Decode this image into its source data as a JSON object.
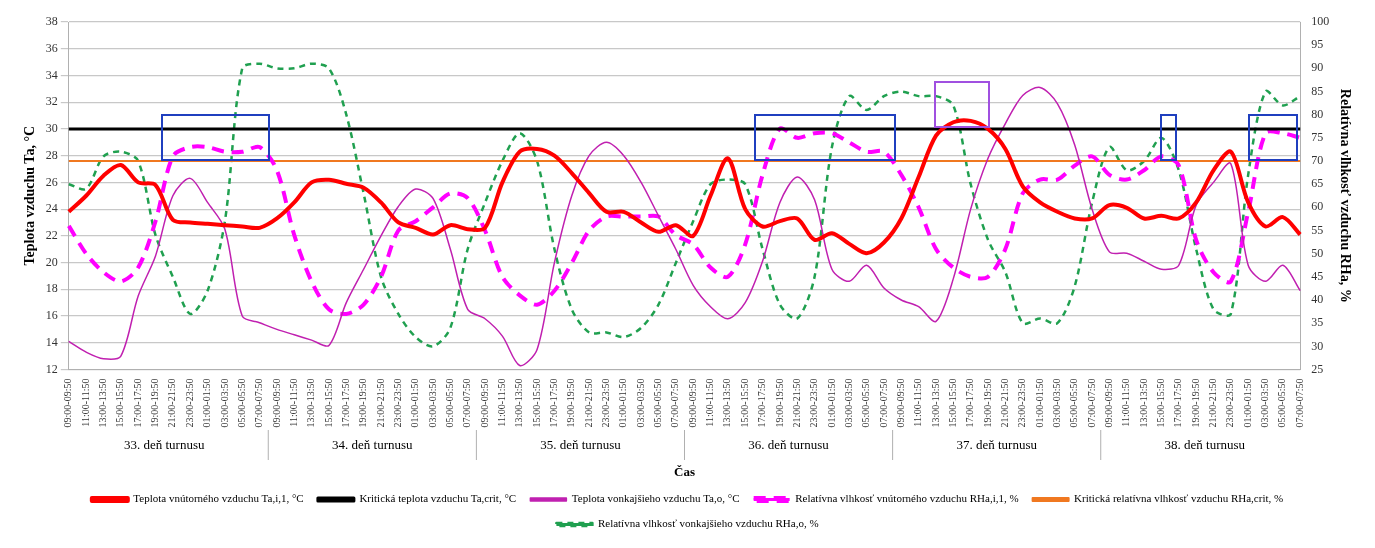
{
  "chart_data": {
    "type": "line",
    "xlabel": "Čas",
    "ylabel": "Teplota vzduchu Ta, °C",
    "y2label": "Relatívna vlhkosť vzduchu RHa, %",
    "categories": [
      "09:00-09:50",
      "11:00-11:50",
      "13:00-13:50",
      "15:00-15:50",
      "17:00-17:50",
      "19:00-19:50",
      "21:00-21:50",
      "23:00-23:50",
      "01:00-01:50",
      "03:00-03:50",
      "05:00-05:50",
      "07:00-07:50",
      "09:00-09:50",
      "11:00-11:50",
      "13:00-13:50",
      "15:00-15:50",
      "17:00-17:50",
      "19:00-19:50",
      "21:00-21:50",
      "23:00-23:50",
      "01:00-01:50",
      "03:00-03:50",
      "05:00-05:50",
      "07:00-07:50",
      "09:00-09:50",
      "11:00-11:50",
      "13:00-13:50",
      "15:00-15:50",
      "17:00-17:50",
      "19:00-19:50",
      "21:00-21:50",
      "23:00-23:50",
      "01:00-01:50",
      "03:00-03:50",
      "05:00-05:50",
      "07:00-07:50",
      "09:00-09:50",
      "11:00-11:50",
      "13:00-13:50",
      "15:00-15:50",
      "17:00-17:50",
      "19:00-19:50",
      "21:00-21:50",
      "23:00-23:50",
      "01:00-01:50",
      "03:00-03:50",
      "05:00-05:50",
      "07:00-07:50",
      "09:00-09:50",
      "11:00-11:50",
      "13:00-13:50",
      "15:00-15:50",
      "17:00-17:50",
      "19:00-19:50",
      "21:00-21:50",
      "23:00-23:50",
      "01:00-01:50",
      "03:00-03:50",
      "05:00-05:50",
      "07:00-07:50",
      "09:00-09:50",
      "11:00-11:50",
      "13:00-13:50",
      "15:00-15:50",
      "17:00-17:50",
      "19:00-19:50",
      "21:00-21:50",
      "23:00-23:50",
      "01:00-01:50",
      "03:00-03:50",
      "05:00-05:50",
      "07:00-07:50"
    ],
    "series": [
      {
        "name": "Teplota vnútorného vzduchu Ta,i,1, °C",
        "color": "#ff0000",
        "line_style": "solid",
        "values": [
          23.8,
          25.0,
          26.5,
          27.3,
          26.0,
          25.8,
          23.2,
          23.0,
          22.9,
          22.8,
          22.7,
          22.6,
          23.3,
          24.5,
          26.0,
          26.2,
          25.9,
          25.6,
          24.5,
          23.0,
          22.6,
          22.1,
          22.8,
          22.5,
          22.6,
          26.0,
          28.3,
          28.5,
          28.0,
          26.7,
          25.2,
          23.8,
          23.8,
          23.0,
          22.3,
          22.8,
          22.0,
          25.0,
          27.8,
          24.0,
          22.7,
          23.1,
          23.3,
          21.7,
          22.2,
          21.4,
          20.7,
          21.5,
          23.3,
          26.4,
          29.5,
          30.5,
          30.6,
          30.0,
          28.5,
          25.7,
          24.5,
          23.8,
          23.3,
          23.3,
          24.3,
          24.1,
          23.3,
          23.5,
          23.3,
          24.5,
          26.9,
          28.3,
          24.5,
          22.7,
          23.4,
          22.1
        ]
      },
      {
        "name": "Kritická teplota vzduchu Ta,crit, °C",
        "color": "#000000",
        "line_style": "solid",
        "values": [
          30,
          30,
          30,
          30,
          30,
          30,
          30,
          30,
          30,
          30,
          30,
          30,
          30,
          30,
          30,
          30,
          30,
          30,
          30,
          30,
          30,
          30,
          30,
          30,
          30,
          30,
          30,
          30,
          30,
          30,
          30,
          30,
          30,
          30,
          30,
          30,
          30,
          30,
          30,
          30,
          30,
          30,
          30,
          30,
          30,
          30,
          30,
          30,
          30,
          30,
          30,
          30,
          30,
          30,
          30,
          30,
          30,
          30,
          30,
          30,
          30,
          30,
          30,
          30,
          30,
          30,
          30,
          30,
          30,
          30,
          30,
          30
        ]
      },
      {
        "name": "Teplota vonkajšieho vzduchu Ta,o, °C",
        "color": "#c020b0",
        "line_style": "solid",
        "values": [
          14.1,
          13.3,
          12.8,
          13.0,
          17.5,
          20.5,
          25.0,
          26.3,
          24.5,
          22.5,
          16.0,
          15.5,
          15.0,
          14.6,
          14.2,
          13.8,
          17.0,
          19.5,
          22.0,
          24.2,
          25.5,
          24.8,
          21.0,
          16.5,
          15.8,
          14.5,
          12.3,
          13.5,
          20.0,
          25.0,
          28.0,
          29.0,
          28.0,
          26.0,
          23.5,
          21.0,
          18.3,
          16.7,
          15.8,
          17.0,
          20.1,
          24.5,
          26.4,
          24.7,
          19.5,
          18.6,
          19.8,
          18.1,
          17.2,
          16.7,
          15.6,
          18.8,
          24.0,
          27.8,
          30.4,
          32.5,
          33.1,
          31.9,
          28.8,
          24.0,
          20.8,
          20.7,
          20.1,
          19.5,
          19.8,
          24.3,
          26.0,
          27.4,
          19.8,
          18.6,
          19.8,
          17.9
        ]
      },
      {
        "name": "Relatívna vlhkosť vnútorného vzduchu RHa,i,1, %",
        "color": "#ff00ff",
        "axis": "y2",
        "line_style": "dashed",
        "values": [
          56,
          50,
          46,
          44,
          47,
          57,
          71,
          73,
          73,
          72,
          72,
          73,
          68,
          54,
          44,
          38,
          37,
          39,
          45,
          55,
          57,
          60,
          63,
          62,
          55,
          45,
          41,
          39,
          42,
          48,
          55,
          58,
          58,
          58,
          58,
          54,
          52,
          47,
          45,
          52,
          67,
          77,
          75,
          76,
          76,
          74,
          72,
          72,
          67,
          60,
          51,
          47,
          45,
          45,
          51,
          63,
          66,
          66,
          69,
          71,
          67,
          66,
          68,
          71,
          69,
          53,
          46,
          44,
          59,
          76,
          76,
          75
        ]
      },
      {
        "name": "Kritická relatívna vlhkosť vzduchu RHa,crit, %",
        "color": "#f07820",
        "axis": "y2",
        "line_style": "solid",
        "values": [
          70,
          70,
          70,
          70,
          70,
          70,
          70,
          70,
          70,
          70,
          70,
          70,
          70,
          70,
          70,
          70,
          70,
          70,
          70,
          70,
          70,
          70,
          70,
          70,
          70,
          70,
          70,
          70,
          70,
          70,
          70,
          70,
          70,
          70,
          70,
          70,
          70,
          70,
          70,
          70,
          70,
          70,
          70,
          70,
          70,
          70,
          70,
          70,
          70,
          70,
          70,
          70,
          70,
          70,
          70,
          70,
          70,
          70,
          70,
          70,
          70,
          70,
          70,
          70,
          70,
          70,
          70,
          70,
          70,
          70,
          70,
          70
        ]
      },
      {
        "name": "Relatívna vlhkosť vonkajšieho vzduchu RHa,o, %",
        "color": "#20a050",
        "axis": "y2",
        "line_style": "dashed",
        "values": [
          65,
          64,
          71,
          72,
          70,
          54,
          45,
          37,
          42,
          57,
          90,
          91,
          90,
          90,
          91,
          90,
          80,
          63,
          45,
          37,
          32,
          30,
          34,
          51,
          61,
          70,
          76,
          70,
          51,
          38,
          33,
          33,
          32,
          34,
          39,
          48,
          57,
          65,
          66,
          65,
          51,
          39,
          36,
          45,
          73,
          84,
          81,
          84,
          85,
          84,
          84,
          82,
          65,
          53,
          46,
          35,
          36,
          35,
          43,
          61,
          73,
          68,
          70,
          75,
          68,
          51,
          38,
          37,
          67,
          85,
          82,
          84
        ]
      }
    ],
    "ylim": [
      12,
      38
    ],
    "yticks": [
      12,
      14,
      16,
      18,
      20,
      22,
      24,
      26,
      28,
      30,
      32,
      34,
      36,
      38
    ],
    "y2lim": [
      25,
      100
    ],
    "y2ticks": [
      25,
      30,
      35,
      40,
      45,
      50,
      55,
      60,
      65,
      70,
      75,
      80,
      85,
      90,
      95,
      100
    ],
    "grid": "y",
    "legend": "bottom",
    "marker": "none",
    "annotations": [
      "33. deň turnusu",
      "34. deň turnusu",
      "35. deň turnusu",
      "36. deň turnusu",
      "37. deň turnusu",
      "38. deň turnusu"
    ]
  }
}
